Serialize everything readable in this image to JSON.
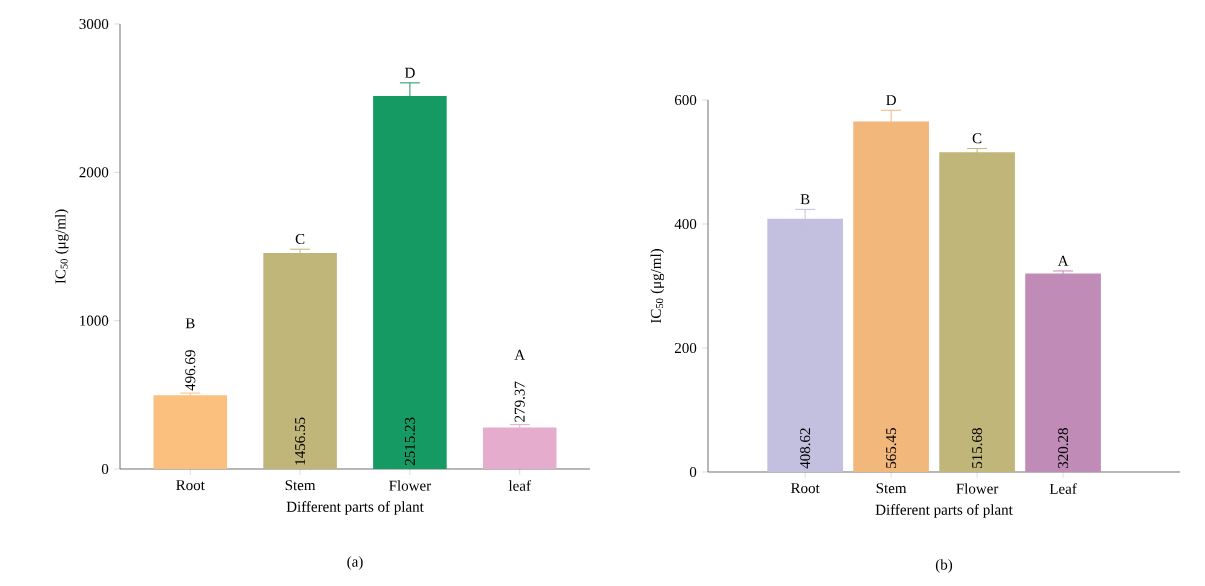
{
  "chart_data": [
    {
      "type": "bar",
      "xlabel": "Different parts of plant",
      "ylabel": "IC$_{50}$ (μg/ml)",
      "categories": [
        "Root",
        "Stem",
        "Flower",
        "leaf"
      ],
      "values": [
        496.69,
        1456.55,
        2515.23,
        279.37
      ],
      "colors": [
        "#fbc07e",
        "#c0b67a",
        "#169a63",
        "#e5acce"
      ],
      "errors": [
        15,
        25,
        88,
        20
      ],
      "data_labels": true,
      "ylim": [
        0,
        3000
      ],
      "yticks": [
        0,
        1000,
        2000,
        3000
      ],
      "annotations": [
        "B",
        "C",
        "D",
        "A",
        "(a)"
      ]
    },
    {
      "type": "bar",
      "xlabel": "Different parts of plant",
      "ylabel": "IC$_{50}$ (μg/ml)",
      "categories": [
        "Root",
        "Stem",
        "Flower",
        "Leaf"
      ],
      "values": [
        408.62,
        565.45,
        515.68,
        320.28
      ],
      "colors": [
        "#c3bfdf",
        "#f1b77b",
        "#c0b67a",
        "#c18bb8"
      ],
      "errors": [
        15,
        18,
        6,
        4
      ],
      "data_labels": true,
      "ylim": [
        0,
        600
      ],
      "yticks": [
        0,
        200,
        400,
        600
      ],
      "annotations": [
        "B",
        "D",
        "C",
        "A",
        "(b)"
      ]
    }
  ]
}
